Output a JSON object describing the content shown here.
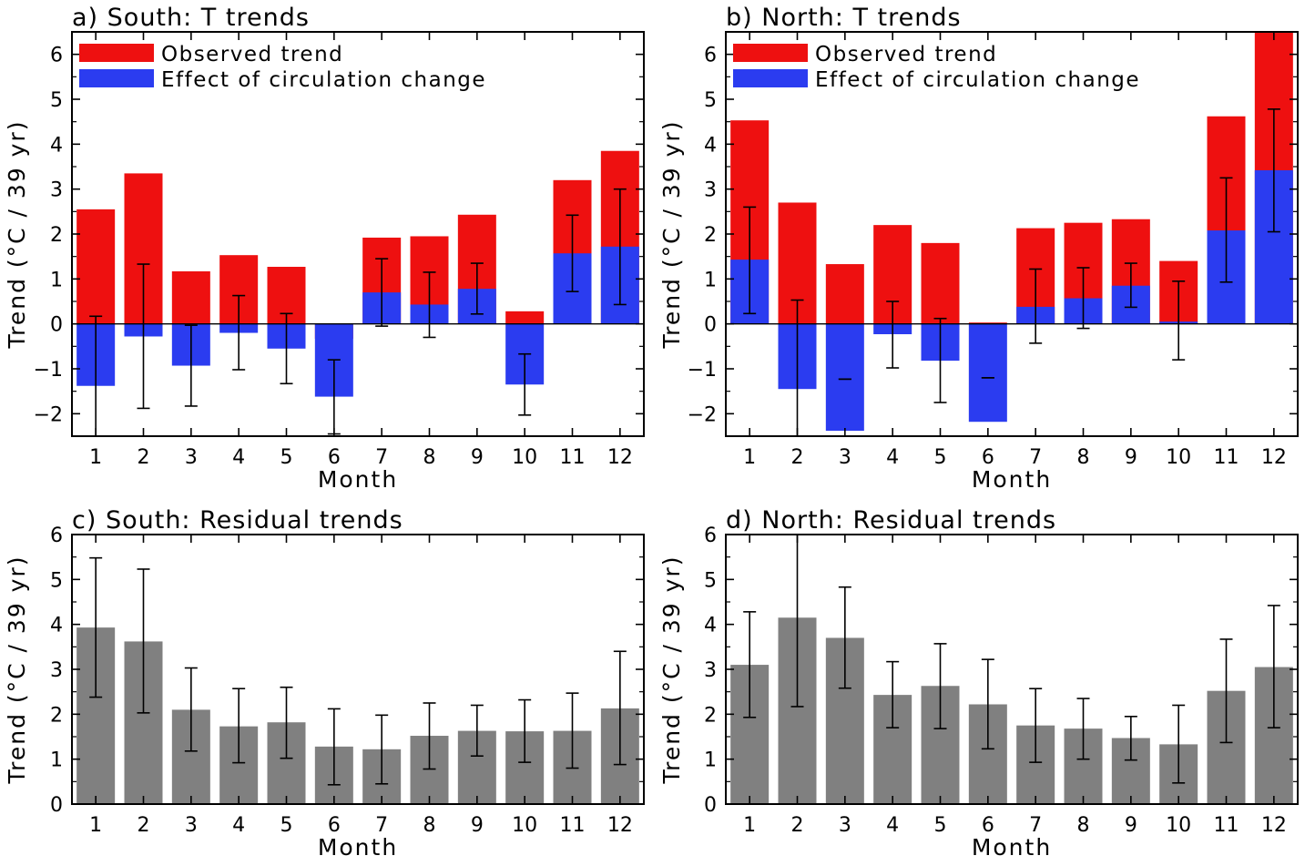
{
  "chart_data": [
    {
      "type": "bar",
      "title": "a) South: T trends",
      "xlabel": "Month",
      "ylabel": "Trend (°C / 39 yr)",
      "ylim": [
        -2.5,
        6.5
      ],
      "yticks": [
        "−2",
        "−1",
        "0",
        "1",
        "2",
        "3",
        "4",
        "5",
        "6"
      ],
      "ytick_values": [
        -2,
        -1,
        0,
        1,
        2,
        3,
        4,
        5,
        6
      ],
      "categories": [
        "1",
        "2",
        "3",
        "4",
        "5",
        "6",
        "7",
        "8",
        "9",
        "10",
        "11",
        "12"
      ],
      "legend_position": "top-left",
      "grid": false,
      "series": [
        {
          "name": "Observed trend",
          "color": "#ee1010",
          "values": [
            2.55,
            3.35,
            1.17,
            1.53,
            1.27,
            -0.33,
            1.92,
            1.95,
            2.43,
            0.28,
            3.2,
            3.85
          ]
        },
        {
          "name": "Effect of circulation change",
          "color": "#2b3cf0",
          "values": [
            -1.38,
            -0.28,
            -0.93,
            -0.2,
            -0.55,
            -1.62,
            0.7,
            0.43,
            0.78,
            -1.35,
            1.57,
            1.72
          ],
          "error_low": [
            -2.5,
            -1.88,
            -1.83,
            -1.02,
            -1.33,
            -2.45,
            -0.05,
            -0.3,
            0.22,
            -2.03,
            0.72,
            0.43
          ],
          "error_high": [
            0.17,
            1.33,
            -0.03,
            0.63,
            0.23,
            -0.8,
            1.45,
            1.15,
            1.35,
            -0.67,
            2.42,
            3.0
          ]
        }
      ]
    },
    {
      "type": "bar",
      "title": "b) North: T trends",
      "xlabel": "Month",
      "ylabel": "Trend (°C / 39 yr)",
      "ylim": [
        -2.5,
        6.5
      ],
      "yticks": [
        "−2",
        "−1",
        "0",
        "1",
        "2",
        "3",
        "4",
        "5",
        "6"
      ],
      "ytick_values": [
        -2,
        -1,
        0,
        1,
        2,
        3,
        4,
        5,
        6
      ],
      "categories": [
        "1",
        "2",
        "3",
        "4",
        "5",
        "6",
        "7",
        "8",
        "9",
        "10",
        "11",
        "12"
      ],
      "legend_position": "top-left",
      "grid": false,
      "series": [
        {
          "name": "Observed trend",
          "color": "#ee1010",
          "values": [
            4.53,
            2.7,
            1.33,
            2.2,
            1.8,
            0.03,
            2.13,
            2.25,
            2.33,
            1.4,
            4.62,
            6.5
          ]
        },
        {
          "name": "Effect of circulation change",
          "color": "#2b3cf0",
          "values": [
            1.43,
            -1.45,
            -2.38,
            -0.23,
            -0.82,
            -2.18,
            0.38,
            0.57,
            0.85,
            0.05,
            2.08,
            3.42
          ],
          "error_low": [
            0.23,
            -2.5,
            -1.23,
            -0.98,
            -1.75,
            -1.2,
            -0.43,
            -0.1,
            0.37,
            -0.8,
            0.93,
            2.05
          ],
          "error_high": [
            2.6,
            0.53,
            -1.23,
            0.5,
            0.12,
            -1.2,
            1.22,
            1.25,
            1.35,
            0.95,
            3.25,
            4.78
          ]
        }
      ]
    },
    {
      "type": "bar",
      "title": "c) South: Residual trends",
      "xlabel": "Month",
      "ylabel": "Trend (°C / 39 yr)",
      "ylim": [
        0,
        6
      ],
      "yticks": [
        "0",
        "1",
        "2",
        "3",
        "4",
        "5",
        "6"
      ],
      "ytick_values": [
        0,
        1,
        2,
        3,
        4,
        5,
        6
      ],
      "categories": [
        "1",
        "2",
        "3",
        "4",
        "5",
        "6",
        "7",
        "8",
        "9",
        "10",
        "11",
        "12"
      ],
      "grid": false,
      "series": [
        {
          "color": "#808080",
          "values": [
            3.93,
            3.62,
            2.1,
            1.73,
            1.82,
            1.28,
            1.22,
            1.52,
            1.63,
            1.62,
            1.63,
            2.13
          ],
          "error_low": [
            2.38,
            2.03,
            1.18,
            0.92,
            1.02,
            0.43,
            0.45,
            0.78,
            1.07,
            0.93,
            0.8,
            0.88
          ],
          "error_high": [
            5.48,
            5.23,
            3.03,
            2.57,
            2.6,
            2.12,
            1.98,
            2.25,
            2.2,
            2.32,
            2.47,
            3.4
          ]
        }
      ]
    },
    {
      "type": "bar",
      "title": "d) North: Residual trends",
      "xlabel": "Month",
      "ylabel": "Trend (°C / 39 yr)",
      "ylim": [
        0,
        6
      ],
      "yticks": [
        "0",
        "1",
        "2",
        "3",
        "4",
        "5",
        "6"
      ],
      "ytick_values": [
        0,
        1,
        2,
        3,
        4,
        5,
        6
      ],
      "categories": [
        "1",
        "2",
        "3",
        "4",
        "5",
        "6",
        "7",
        "8",
        "9",
        "10",
        "11",
        "12"
      ],
      "grid": false,
      "series": [
        {
          "color": "#808080",
          "values": [
            3.1,
            4.15,
            3.7,
            2.43,
            2.63,
            2.22,
            1.75,
            1.68,
            1.47,
            1.33,
            2.52,
            3.05
          ],
          "error_low": [
            1.93,
            2.17,
            2.58,
            1.7,
            1.68,
            1.23,
            0.93,
            1.0,
            0.98,
            0.47,
            1.37,
            1.7
          ],
          "error_high": [
            4.28,
            6.0,
            4.83,
            3.17,
            3.57,
            3.22,
            2.57,
            2.35,
            1.95,
            2.2,
            3.67,
            4.42
          ]
        }
      ]
    }
  ]
}
